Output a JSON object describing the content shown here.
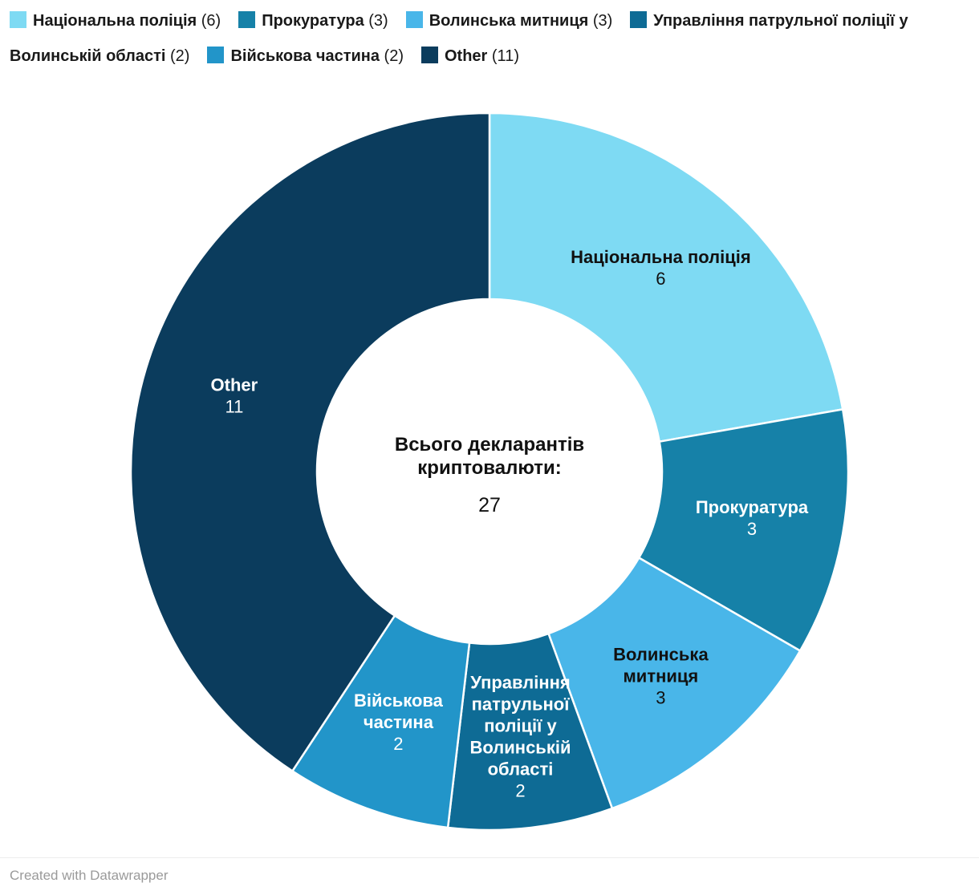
{
  "chart_data": {
    "type": "pie",
    "donut": true,
    "legend_position": "top",
    "total": 27,
    "center_label": {
      "lines": [
        "Всього декларантів",
        "криптовалюти:"
      ],
      "value": "27"
    },
    "slices": [
      {
        "name": "Національна поліція",
        "value": 6,
        "color": "#7EDAF3",
        "text_color": "#111111",
        "label_lines": [
          "Національна поліція"
        ]
      },
      {
        "name": "Прокуратура",
        "value": 3,
        "color": "#1681A8",
        "text_color": "#ffffff",
        "label_lines": [
          "Прокуратура"
        ]
      },
      {
        "name": "Волинська митниця",
        "value": 3,
        "color": "#49B6E9",
        "text_color": "#111111",
        "label_lines": [
          "Волинська",
          "митниця"
        ]
      },
      {
        "name": "Управління патрульної поліції у Волинській області",
        "value": 2,
        "color": "#0E6B95",
        "text_color": "#ffffff",
        "label_lines": [
          "Управління",
          "патрульної",
          "поліції у",
          "Волинській",
          "області"
        ]
      },
      {
        "name": "Військова частина",
        "value": 2,
        "color": "#2295C9",
        "text_color": "#ffffff",
        "label_lines": [
          "Військова",
          "частина"
        ]
      },
      {
        "name": "Other",
        "value": 11,
        "color": "#0B3C5D",
        "text_color": "#ffffff",
        "label_lines": [
          "Other"
        ]
      }
    ]
  },
  "footer": {
    "credit": "Created with Datawrapper"
  }
}
